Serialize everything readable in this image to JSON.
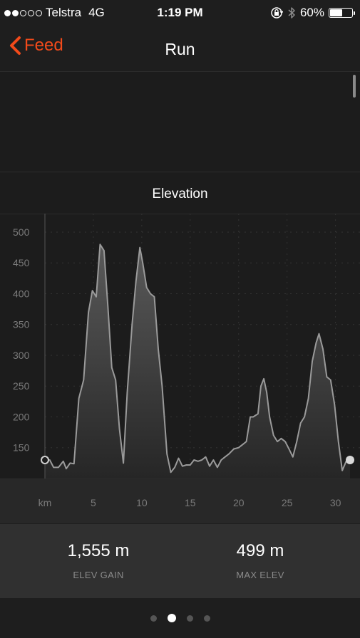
{
  "status_bar": {
    "carrier": "Telstra",
    "network": "4G",
    "time": "1:19 PM",
    "battery": "60%",
    "battery_level": 0.6,
    "signal_filled": 2,
    "signal_total": 5,
    "icons": [
      "rotation-lock-icon",
      "bluetooth-icon",
      "battery-icon"
    ]
  },
  "nav": {
    "back_label": "Feed",
    "title": "Run",
    "accent_color": "#f24a1a"
  },
  "section": {
    "title": "Elevation"
  },
  "chart_data": {
    "type": "area",
    "xlabel": "km",
    "x_ticks": [
      5,
      10,
      15,
      20,
      25,
      30
    ],
    "y_ticks": [
      150,
      200,
      250,
      300,
      350,
      400,
      450,
      500
    ],
    "xlim": [
      0,
      31.5
    ],
    "ylim": [
      100,
      530
    ],
    "grid": true,
    "x": [
      0,
      0.5,
      0.9,
      1.4,
      1.9,
      2.2,
      2.6,
      3.0,
      3.5,
      4.0,
      4.5,
      4.9,
      5.3,
      5.7,
      6.1,
      6.5,
      6.9,
      7.3,
      7.7,
      8.1,
      8.5,
      9.0,
      9.4,
      9.8,
      10.1,
      10.5,
      10.9,
      11.3,
      11.7,
      12.1,
      12.6,
      13.0,
      13.4,
      13.8,
      14.2,
      14.6,
      15.0,
      15.4,
      15.8,
      16.2,
      16.6,
      17.0,
      17.4,
      17.8,
      18.2,
      18.6,
      19.0,
      19.5,
      20.0,
      20.4,
      20.8,
      21.2,
      21.5,
      22.0,
      22.3,
      22.6,
      22.9,
      23.2,
      23.6,
      24.0,
      24.4,
      24.8,
      25.2,
      25.6,
      26.0,
      26.4,
      26.8,
      27.2,
      27.6,
      28.0,
      28.3,
      28.7,
      29.1,
      29.5,
      29.9,
      30.3,
      30.7,
      31.1,
      31.5
    ],
    "values": [
      130,
      130,
      118,
      118,
      128,
      116,
      125,
      124,
      230,
      260,
      370,
      405,
      395,
      480,
      470,
      380,
      280,
      260,
      180,
      125,
      240,
      350,
      420,
      475,
      450,
      410,
      400,
      395,
      310,
      250,
      140,
      110,
      118,
      133,
      120,
      122,
      122,
      130,
      128,
      130,
      135,
      120,
      130,
      118,
      130,
      135,
      140,
      148,
      150,
      155,
      160,
      200,
      200,
      205,
      250,
      262,
      240,
      200,
      170,
      160,
      165,
      160,
      148,
      135,
      160,
      190,
      200,
      230,
      290,
      320,
      335,
      310,
      265,
      260,
      220,
      160,
      113,
      128,
      130
    ],
    "start_marker_value": 130,
    "end_marker_value": 130
  },
  "stats": [
    {
      "value": "1,555 m",
      "label": "ELEV GAIN"
    },
    {
      "value": "499 m",
      "label": "MAX ELEV"
    }
  ],
  "pagination": {
    "count": 4,
    "active": 1
  }
}
